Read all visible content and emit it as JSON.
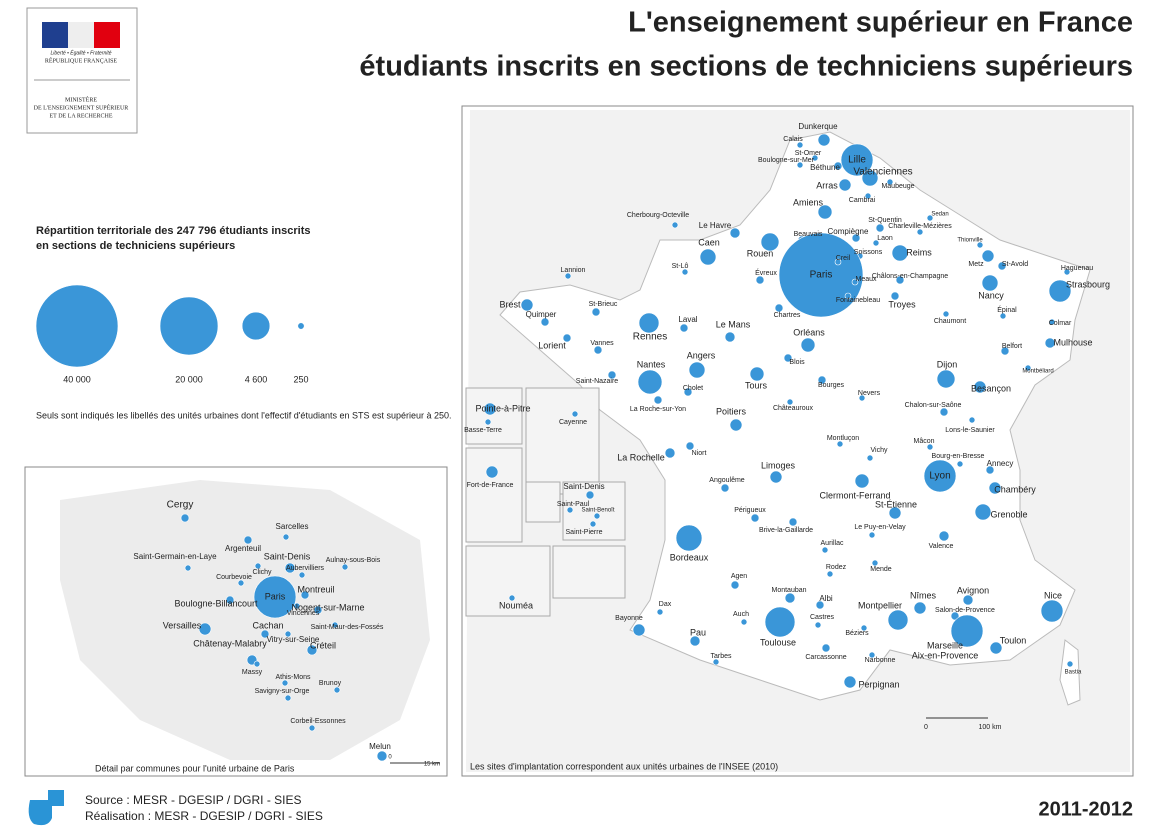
{
  "header": {
    "logo_lines": [
      "Liberté • Égalité • Fraternité",
      "RÉPUBLIQUE FRANÇAISE"
    ],
    "ministry": [
      "MINISTÈRE",
      "DE L'ENSEIGNEMENT SUPÉRIEUR",
      "ET DE LA RECHERCHE"
    ],
    "title": [
      "L'enseignement supérieur en France",
      "étudiants inscrits en sections de techniciens  supérieurs"
    ]
  },
  "legend": {
    "title": [
      "Répartition territoriale des 247 796 étudiants inscrits",
      "en sections de techniciens supérieurs"
    ],
    "sizes": [
      {
        "value": 40000,
        "label": "40 000"
      },
      {
        "value": 20000,
        "label": "20 000"
      },
      {
        "value": 4600,
        "label": "4 600"
      },
      250
    ],
    "note": "Seuls sont indiqués les libellés des unités urbaines dont l'effectif d'étudiants en STS est supérieur à 250."
  },
  "main_map": {
    "cities": [
      "Dunkerque",
      "Calais",
      "Lille",
      "St-Omer",
      "Boulogne-sur-Mer",
      "Béthune",
      "Valenciennes",
      "Arras",
      "Maubeuge",
      "Cambrai",
      "Amiens",
      "Cherbourg-Octeville",
      "St-Quentin",
      "Sedan",
      "Le Havre",
      "Beauvais",
      "Compiègne",
      "Charleville-Mézières",
      "Thionville",
      "Laon",
      "Caen",
      "Rouen",
      "Soissons",
      "Reims",
      "Metz",
      "St-Avold",
      "Haguenau",
      "Paris",
      "Creil",
      "Évreux",
      "Meaux",
      "Châlons-en-Champagne",
      "St-Lô",
      "Lannion",
      "Brest",
      "St-Brieuc",
      "Nancy",
      "Strasbourg",
      "Fontainebleau",
      "Troyes",
      "Chartres",
      "Quimper",
      "Laval",
      "Rennes",
      "Le Mans",
      "Épinal",
      "Colmar",
      "Chaumont",
      "Orléans",
      "Lorient",
      "Vannes",
      "Mulhouse",
      "Belfort",
      "Angers",
      "Blois",
      "Nantes",
      "Tours",
      "Dijon",
      "Saint-Nazaire",
      "Cholet",
      "Besançon",
      "Bourges",
      "Nevers",
      "Montbéliard",
      "La Roche-sur-Yon",
      "Poitiers",
      "Châteauroux",
      "Chalon-sur-Saône",
      "Lons-le-Saunier",
      "Montluçon",
      "Niort",
      "Vichy",
      "Mâcon",
      "La Rochelle",
      "Bourg-en-Bresse",
      "Annecy",
      "Limoges",
      "Lyon",
      "Chambéry",
      "Clermont-Ferrand",
      "Angoulême",
      "St-Étienne",
      "Grenoble",
      "Périgueux",
      "Brive-la-Gaillarde",
      "Le Puy-en-Velay",
      "Aurillac",
      "Valence",
      "Bordeaux",
      "Rodez",
      "Mende",
      "Agen",
      "Montauban",
      "Albi",
      "Nîmes",
      "Avignon",
      "Nice",
      "Salon-de-Provence",
      "Dax",
      "Auch",
      "Montpellier",
      "Castres",
      "Bayonne",
      "Toulouse",
      "Béziers",
      "Pau",
      "Marseille",
      "Aix-en-Provence",
      "Toulon",
      "Carcassonne",
      "Tarbes",
      "Narbonne",
      "Perpignan",
      "Bastia",
      "Pointe-à-Pitre",
      "Basse-Terre",
      "Cayenne",
      "Fort-de-France",
      "Saint-Denis",
      "Saint-Paul",
      "Saint-Benoît",
      "Saint-Pierre",
      "Nouméa"
    ],
    "scale_labels": [
      "0",
      "100 km"
    ],
    "caption": "Les sites d'implantation correspondent aux unités urbaines de l'INSEE (2010)"
  },
  "paris_map": {
    "cities": [
      "Cergy",
      "Sarcelles",
      "Argenteuil",
      "Saint-Denis",
      "Saint-Germain-en-Laye",
      "Aulnay-sous-Bois",
      "Aubervilliers",
      "Clichy",
      "Courbevoie",
      "Paris",
      "Montreuil",
      "Boulogne-Billancourt",
      "Nogent-sur-Marne",
      "Vincennes",
      "Saint-Maur-des-Fossés",
      "Cachan",
      "Versailles",
      "Vitry-sur-Seine",
      "Créteil",
      "Châtenay-Malabry",
      "Massy",
      "Athis-Mons",
      "Brunoy",
      "Savigny-sur-Orge",
      "Corbeil-Essonnes",
      "Melun"
    ],
    "scale_labels": [
      "0",
      "15 km"
    ],
    "caption": "Détail par communes pour l'unité urbaine de Paris"
  },
  "footer": {
    "source": "Source : MESR - DGESIP / DGRI - SIES",
    "realisation": "Réalisation : MESR - DGESIP / DGRI - SIES",
    "year": "2011-2012"
  }
}
